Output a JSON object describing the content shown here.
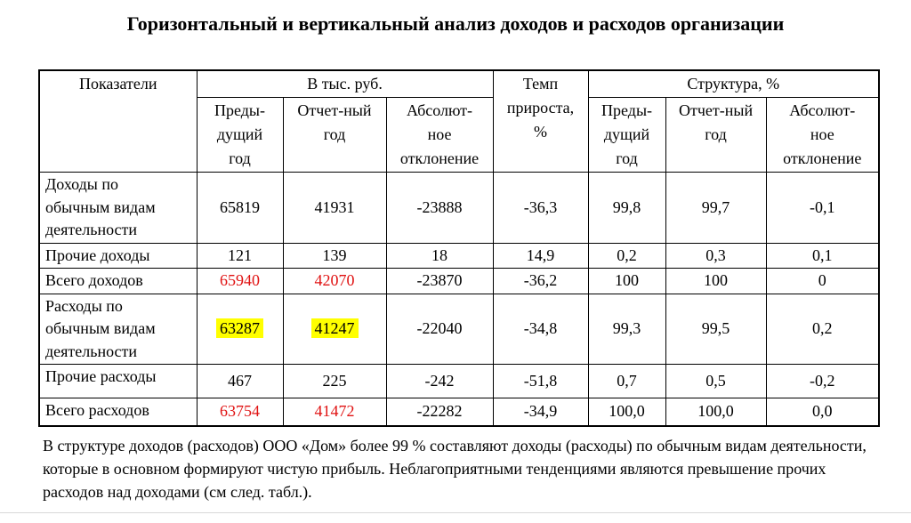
{
  "page": {
    "title": "Горизонтальный и вертикальный анализ доходов и расходов организации",
    "footnote": "В структуре доходов (расходов) ООО «Дом» более 99 % составляют доходы (расходы) по обычным видам деятельности, которые в основном формируют чистую прибыль. Неблагоприятными тенденциями являются превышение прочих расходов над доходами (см след. табл.)."
  },
  "colors": {
    "highlight_yellow": "#ffff00",
    "accent_red": "#e01212",
    "table_border": "#000000"
  },
  "table": {
    "header": {
      "indicators": "Показатели",
      "group_thous_rub": "В тыс. руб.",
      "growth_rate": "Темп\nприроста,\n%",
      "group_structure": "Структура, %",
      "sub": [
        "Преды-\nдущий\nгод",
        "Отчет-ный\nгод",
        "Абсолют-\nное\nотклонение"
      ]
    },
    "rows": [
      {
        "label": "Доходы по\nобычным видам\nдеятельности",
        "values": [
          "65819",
          "41931",
          "-23888",
          "-36,3",
          "99,8",
          "99,7",
          "-0,1"
        ],
        "styles": [
          "",
          "",
          "",
          "",
          "",
          "",
          ""
        ]
      },
      {
        "label": "Прочие доходы",
        "values": [
          "121",
          "139",
          "18",
          "14,9",
          "0,2",
          "0,3",
          "0,1"
        ],
        "styles": [
          "",
          "",
          "",
          "",
          "",
          "",
          ""
        ]
      },
      {
        "label": "Всего доходов",
        "values": [
          "65940",
          "42070",
          "-23870",
          "-36,2",
          "100",
          "100",
          "0"
        ],
        "styles": [
          "red",
          "red",
          "",
          "",
          "",
          "",
          ""
        ]
      },
      {
        "label": "Расходы по\nобычным видам\nдеятельности",
        "values": [
          "63287",
          "41247",
          "-22040",
          "-34,8",
          "99,3",
          "99,5",
          "0,2"
        ],
        "styles": [
          "highlight",
          "highlight",
          "",
          "",
          "",
          "",
          ""
        ]
      },
      {
        "label": "Прочие расходы",
        "values": [
          "467",
          "225",
          "-242",
          "-51,8",
          "0,7",
          "0,5",
          "-0,2"
        ],
        "styles": [
          "",
          "",
          "",
          "",
          "",
          "",
          ""
        ]
      },
      {
        "label": "Всего расходов",
        "values": [
          "63754",
          "41472",
          "-22282",
          "-34,9",
          "100,0",
          "100,0",
          "0,0"
        ],
        "styles": [
          "red",
          "red",
          "",
          "",
          "",
          "",
          ""
        ]
      }
    ]
  }
}
